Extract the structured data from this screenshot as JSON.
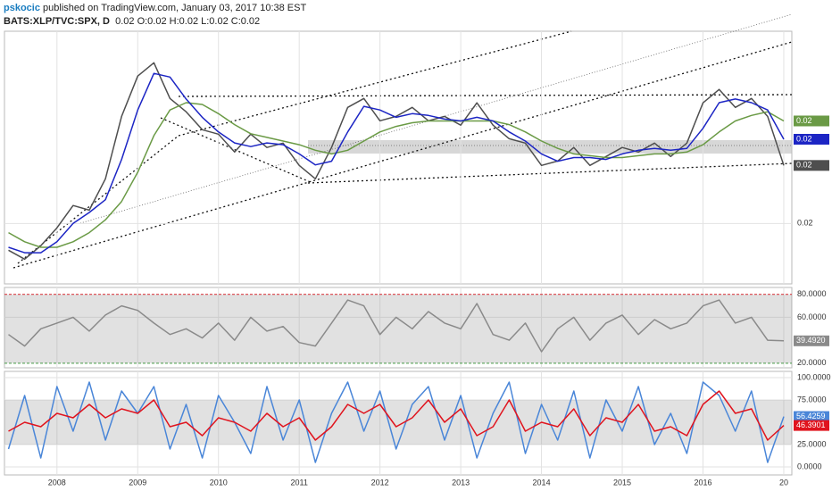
{
  "header": {
    "author": "pskocic",
    "published": "published on TradingView.com, January 03, 2017 10:38 EST",
    "symbol": "BATS:XLP/TVC:SPX, D",
    "ohlc": "0.02 O:0.02 H:0.02 L:0.02 C:0.02"
  },
  "chart_data": [
    {
      "type": "line",
      "x": [
        2007.4,
        2007.6,
        2007.8,
        2008.0,
        2008.2,
        2008.4,
        2008.6,
        2008.8,
        2009.0,
        2009.2,
        2009.4,
        2009.6,
        2009.8,
        2010.0,
        2010.2,
        2010.4,
        2010.6,
        2010.8,
        2011.0,
        2011.2,
        2011.4,
        2011.6,
        2011.8,
        2012.0,
        2012.2,
        2012.4,
        2012.6,
        2012.8,
        2013.0,
        2013.2,
        2013.4,
        2013.6,
        2013.8,
        2014.0,
        2014.2,
        2014.4,
        2014.6,
        2014.8,
        2015.0,
        2015.2,
        2015.4,
        2015.6,
        2015.8,
        2016.0,
        2016.2,
        2016.4,
        2016.6,
        2016.8,
        2017.0
      ],
      "xlim": [
        2007.35,
        2017.1
      ],
      "xticks": [
        2008,
        2009,
        2010,
        2011,
        2012,
        2013,
        2014,
        2015,
        2016,
        {
          "value": 2017,
          "label": "20"
        }
      ],
      "ylim": [
        0.0167,
        0.0305
      ],
      "yticks": [
        {
          "value": 0.02,
          "label": "0.02"
        }
      ],
      "series": [
        {
          "color": "#4e4e4e",
          "last_label": "0.02",
          "values": [
            0.01854,
            0.01805,
            0.01878,
            0.01976,
            0.02098,
            0.02073,
            0.02244,
            0.02585,
            0.02805,
            0.02878,
            0.02683,
            0.0261,
            0.02512,
            0.02488,
            0.0239,
            0.02488,
            0.02415,
            0.02439,
            0.02317,
            0.02244,
            0.02415,
            0.02634,
            0.02683,
            0.02561,
            0.02585,
            0.02634,
            0.02561,
            0.02585,
            0.02537,
            0.02659,
            0.02537,
            0.02463,
            0.02439,
            0.02317,
            0.02341,
            0.02415,
            0.02317,
            0.02366,
            0.02415,
            0.0239,
            0.02439,
            0.02366,
            0.02439,
            0.02659,
            0.02732,
            0.02634,
            0.02683,
            0.02585,
            0.02317
          ]
        },
        {
          "color": "#6a9a45",
          "last_label": "0.02",
          "values": [
            0.0195,
            0.019,
            0.0187,
            0.0187,
            0.019,
            0.0195,
            0.0202,
            0.0212,
            0.0228,
            0.0248,
            0.0262,
            0.0266,
            0.0265,
            0.026,
            0.0254,
            0.0249,
            0.0247,
            0.0245,
            0.0243,
            0.024,
            0.0238,
            0.024,
            0.0245,
            0.025,
            0.0253,
            0.0255,
            0.0256,
            0.0256,
            0.0256,
            0.0256,
            0.0256,
            0.0254,
            0.025,
            0.0245,
            0.0241,
            0.0238,
            0.0237,
            0.0236,
            0.0236,
            0.0237,
            0.0238,
            0.0238,
            0.0239,
            0.0243,
            0.025,
            0.0256,
            0.0259,
            0.0261,
            0.0256
          ]
        },
        {
          "color": "#1c25c4",
          "last_label": "0.02",
          "values": [
            0.0187,
            0.0184,
            0.0184,
            0.019,
            0.02,
            0.0206,
            0.0213,
            0.0235,
            0.0262,
            0.0282,
            0.028,
            0.0268,
            0.0258,
            0.025,
            0.0244,
            0.0242,
            0.0244,
            0.0243,
            0.0238,
            0.0232,
            0.0234,
            0.025,
            0.0264,
            0.0262,
            0.0258,
            0.026,
            0.0259,
            0.0257,
            0.0256,
            0.0258,
            0.0256,
            0.025,
            0.0245,
            0.0238,
            0.0234,
            0.0236,
            0.0236,
            0.0235,
            0.0238,
            0.024,
            0.0241,
            0.024,
            0.0241,
            0.0252,
            0.0266,
            0.0268,
            0.0266,
            0.0262,
            0.0246
          ]
        }
      ]
    },
    {
      "type": "line",
      "ylim": [
        16,
        86
      ],
      "yticks": [
        {
          "value": 20,
          "label": "20.0000"
        },
        {
          "value": 60,
          "label": "60.0000"
        },
        {
          "value": 80,
          "label": "80.0000"
        }
      ],
      "series": [
        {
          "color": "#8a8a8a",
          "last_label": "39.4920",
          "values": [
            45,
            35,
            50,
            55,
            60,
            48,
            62,
            70,
            66,
            55,
            45,
            50,
            42,
            55,
            40,
            60,
            48,
            52,
            38,
            35,
            55,
            75,
            70,
            45,
            60,
            50,
            65,
            55,
            50,
            72,
            45,
            40,
            55,
            30,
            50,
            60,
            40,
            55,
            62,
            45,
            58,
            50,
            55,
            70,
            75,
            55,
            60,
            40,
            39.492
          ]
        }
      ]
    },
    {
      "type": "line",
      "ylim": [
        -9,
        107
      ],
      "yticks": [
        {
          "value": 0,
          "label": "0.0000"
        },
        {
          "value": 25,
          "label": "25.0000"
        },
        {
          "value": 75,
          "label": "75.0000"
        },
        {
          "value": 100,
          "label": "100.0000"
        }
      ],
      "series": [
        {
          "color": "#4a86d8",
          "last_label": "56.4259",
          "values": [
            20,
            80,
            10,
            90,
            40,
            95,
            30,
            85,
            60,
            90,
            20,
            70,
            10,
            80,
            50,
            15,
            90,
            30,
            75,
            5,
            60,
            95,
            40,
            85,
            20,
            70,
            90,
            30,
            80,
            10,
            60,
            95,
            15,
            70,
            30,
            85,
            10,
            75,
            40,
            90,
            25,
            60,
            15,
            95,
            80,
            40,
            85,
            5,
            56.4259
          ]
        },
        {
          "color": "#e0141e",
          "last_label": "46.3901",
          "values": [
            40,
            50,
            45,
            60,
            55,
            70,
            55,
            65,
            60,
            75,
            45,
            50,
            35,
            55,
            50,
            40,
            60,
            45,
            55,
            30,
            45,
            70,
            60,
            70,
            45,
            55,
            75,
            50,
            65,
            35,
            45,
            75,
            40,
            50,
            45,
            65,
            35,
            55,
            50,
            70,
            40,
            45,
            35,
            70,
            85,
            60,
            65,
            30,
            46.3901
          ]
        }
      ]
    }
  ]
}
